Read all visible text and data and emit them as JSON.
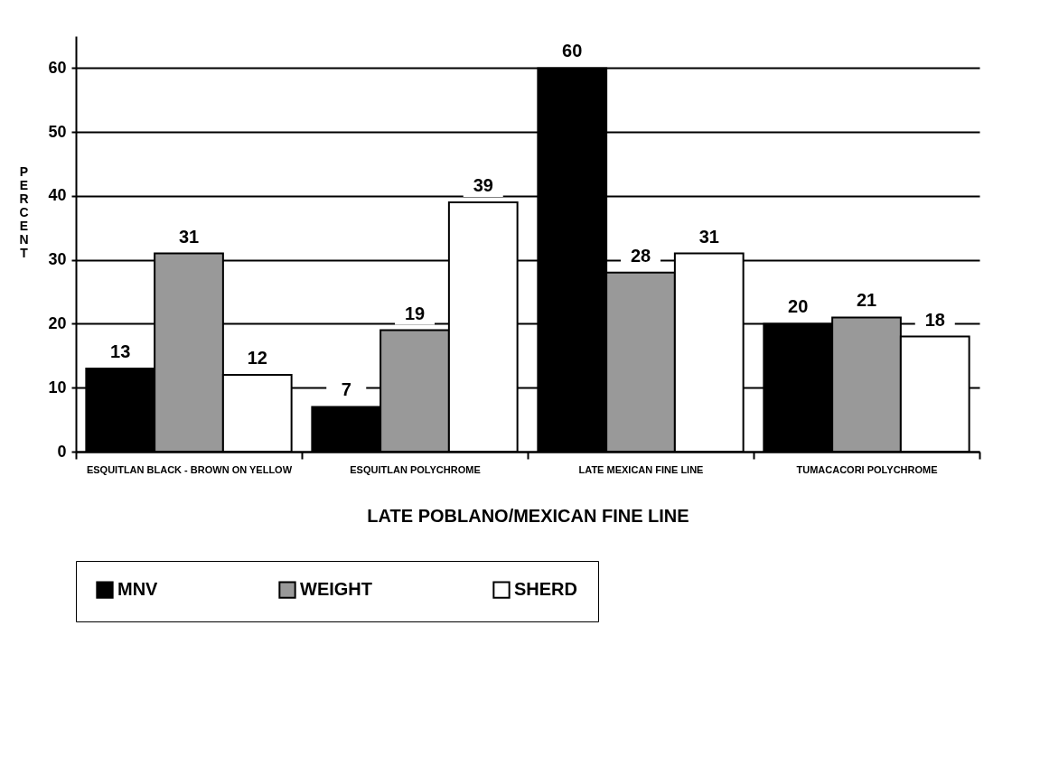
{
  "chart_data": {
    "type": "bar",
    "xlabel": "LATE POBLANO/MEXICAN FINE LINE",
    "ylabel": "PERCENT",
    "categories": [
      "ESQUITLAN BLACK - BROWN ON YELLOW",
      "ESQUITLAN POLYCHROME",
      "LATE MEXICAN FINE LINE",
      "TUMACACORI POLYCHROME"
    ],
    "series": [
      {
        "name": "MNV",
        "color": "#000000",
        "values": [
          13,
          7,
          60,
          20
        ]
      },
      {
        "name": "WEIGHT",
        "color": "#999999",
        "values": [
          31,
          19,
          28,
          21
        ]
      },
      {
        "name": "SHERD",
        "color": "#ffffff",
        "values": [
          12,
          39,
          31,
          18
        ]
      }
    ],
    "ylim": [
      0,
      65
    ],
    "yticks": [
      0,
      10,
      20,
      30,
      40,
      50,
      60
    ],
    "grid": "y",
    "legend": "bottom",
    "data_labels": true
  }
}
